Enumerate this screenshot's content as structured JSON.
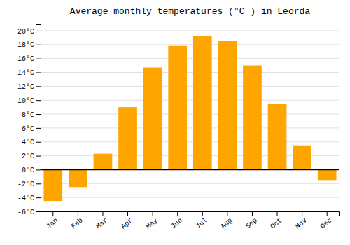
{
  "chart_data": {
    "type": "bar",
    "title": "Average monthly temperatures (°C ) in Leorda",
    "categories": [
      "Jan",
      "Feb",
      "Mar",
      "Apr",
      "May",
      "Jun",
      "Jul",
      "Aug",
      "Sep",
      "Oct",
      "Nov",
      "Dec"
    ],
    "values": [
      -4.5,
      -2.5,
      2.3,
      9.0,
      14.7,
      17.8,
      19.2,
      18.5,
      15.0,
      9.5,
      3.5,
      -1.5
    ],
    "color": "#FFA500",
    "ylim": [
      -6,
      21
    ],
    "yticks": [
      {
        "value": -6,
        "label": "-6°C"
      },
      {
        "value": -4,
        "label": "-4°C"
      },
      {
        "value": -2,
        "label": "-2°C"
      },
      {
        "value": 0,
        "label": "0°C"
      },
      {
        "value": 2,
        "label": "2°C"
      },
      {
        "value": 4,
        "label": "4°C"
      },
      {
        "value": 6,
        "label": "6°C"
      },
      {
        "value": 8,
        "label": "8°C"
      },
      {
        "value": 10,
        "label": "10°C"
      },
      {
        "value": 12,
        "label": "12°C"
      },
      {
        "value": 14,
        "label": "14°C"
      },
      {
        "value": 16,
        "label": "16°C"
      },
      {
        "value": 18,
        "label": "18°C"
      },
      {
        "value": 20,
        "label": "20°C"
      }
    ],
    "grid": true
  }
}
